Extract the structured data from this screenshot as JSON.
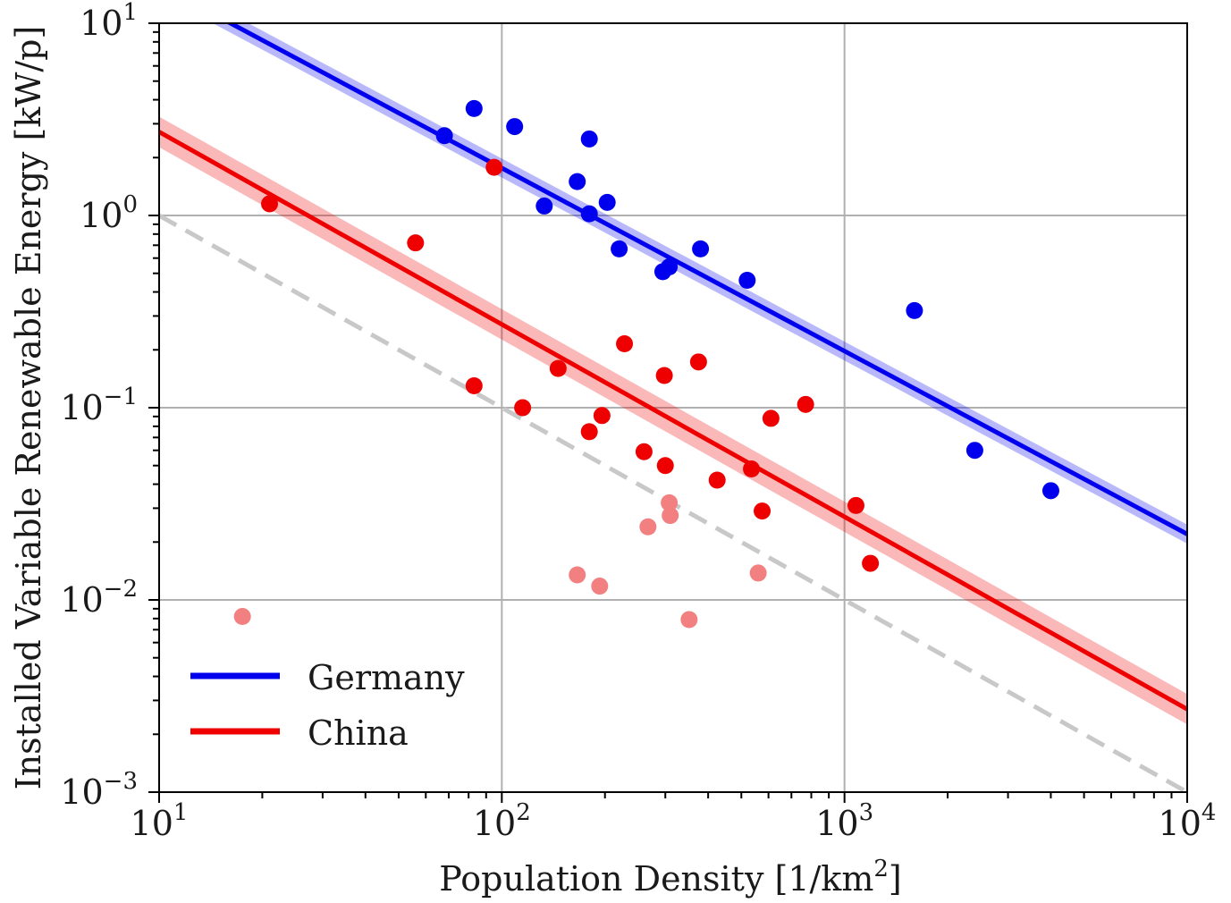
{
  "chart_data": {
    "type": "scatter",
    "title": "",
    "xlabel": "Population Density [1/km²]",
    "xlabel_parts": {
      "text": "Population Density [1/km",
      "sup": "2",
      "tail": "]"
    },
    "ylabel": "Installed Variable Renewable Energy [kW/p]",
    "xscale": "log",
    "yscale": "log",
    "xlim": [
      10,
      10000
    ],
    "ylim": [
      0.001,
      10
    ],
    "x_ticks": [
      {
        "value": 10,
        "base": "10",
        "exp": "1"
      },
      {
        "value": 100,
        "base": "10",
        "exp": "2"
      },
      {
        "value": 1000,
        "base": "10",
        "exp": "3"
      },
      {
        "value": 10000,
        "base": "10",
        "exp": "4"
      }
    ],
    "y_ticks": [
      {
        "value": 0.001,
        "base": "10",
        "exp": "−3"
      },
      {
        "value": 0.01,
        "base": "10",
        "exp": "−2"
      },
      {
        "value": 0.1,
        "base": "10",
        "exp": "−1"
      },
      {
        "value": 1,
        "base": "10",
        "exp": "0"
      },
      {
        "value": 10,
        "base": "10",
        "exp": "1"
      }
    ],
    "grid": true,
    "legend": {
      "placement": "lower-left"
    },
    "series": [
      {
        "name": "Germany",
        "color": "#0000ee",
        "fit_line": {
          "x": [
            10,
            10000
          ],
          "y": [
            15.8,
            0.022
          ]
        },
        "band_factor": 1.12,
        "points": [
          {
            "x": 68,
            "y": 2.6
          },
          {
            "x": 83,
            "y": 3.6
          },
          {
            "x": 109,
            "y": 2.9
          },
          {
            "x": 133,
            "y": 1.12
          },
          {
            "x": 166,
            "y": 1.5
          },
          {
            "x": 180,
            "y": 2.5
          },
          {
            "x": 180,
            "y": 1.02
          },
          {
            "x": 203,
            "y": 1.17
          },
          {
            "x": 220,
            "y": 0.67
          },
          {
            "x": 295,
            "y": 0.51
          },
          {
            "x": 308,
            "y": 0.54
          },
          {
            "x": 380,
            "y": 0.67
          },
          {
            "x": 520,
            "y": 0.46
          },
          {
            "x": 1600,
            "y": 0.32
          },
          {
            "x": 2400,
            "y": 0.06
          },
          {
            "x": 4000,
            "y": 0.037
          }
        ]
      },
      {
        "name": "China",
        "color": "#ee0000",
        "faded_color": "#f28080",
        "fit_line": {
          "x": [
            10,
            10000
          ],
          "y": [
            2.72,
            0.0027
          ]
        },
        "band_factor": 1.2,
        "points": [
          {
            "x": 21,
            "y": 1.15
          },
          {
            "x": 56,
            "y": 0.72
          },
          {
            "x": 95,
            "y": 1.78
          },
          {
            "x": 83,
            "y": 0.13
          },
          {
            "x": 115,
            "y": 0.1
          },
          {
            "x": 146,
            "y": 0.16
          },
          {
            "x": 180,
            "y": 0.075
          },
          {
            "x": 196,
            "y": 0.091
          },
          {
            "x": 228,
            "y": 0.215
          },
          {
            "x": 260,
            "y": 0.059
          },
          {
            "x": 298,
            "y": 0.147
          },
          {
            "x": 300,
            "y": 0.05
          },
          {
            "x": 375,
            "y": 0.173
          },
          {
            "x": 425,
            "y": 0.042
          },
          {
            "x": 535,
            "y": 0.048
          },
          {
            "x": 575,
            "y": 0.029
          },
          {
            "x": 610,
            "y": 0.088
          },
          {
            "x": 770,
            "y": 0.104
          },
          {
            "x": 1080,
            "y": 0.031
          },
          {
            "x": 1190,
            "y": 0.0155
          }
        ],
        "faded_points": [
          {
            "x": 17.5,
            "y": 0.0082
          },
          {
            "x": 166,
            "y": 0.0135
          },
          {
            "x": 193,
            "y": 0.0118
          },
          {
            "x": 267,
            "y": 0.024
          },
          {
            "x": 308,
            "y": 0.032
          },
          {
            "x": 310,
            "y": 0.0275
          },
          {
            "x": 352,
            "y": 0.0079
          },
          {
            "x": 560,
            "y": 0.0138
          }
        ]
      }
    ],
    "reference_line": {
      "style": "dashed",
      "color": "#c8c8c8",
      "x": [
        10,
        10000
      ],
      "y": [
        1,
        0.001
      ]
    }
  }
}
